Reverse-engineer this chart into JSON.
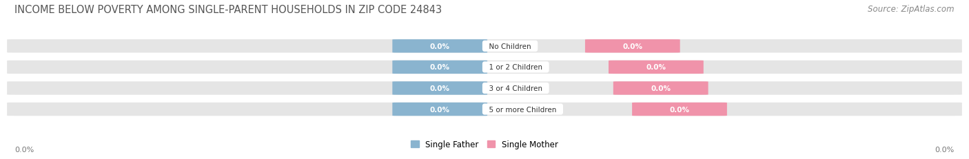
{
  "title": "INCOME BELOW POVERTY AMONG SINGLE-PARENT HOUSEHOLDS IN ZIP CODE 24843",
  "source": "Source: ZipAtlas.com",
  "categories": [
    "No Children",
    "1 or 2 Children",
    "3 or 4 Children",
    "5 or more Children"
  ],
  "father_values": [
    0.0,
    0.0,
    0.0,
    0.0
  ],
  "mother_values": [
    0.0,
    0.0,
    0.0,
    0.0
  ],
  "father_color": "#8ab4cf",
  "mother_color": "#f093aa",
  "bg_bar_color": "#e5e5e5",
  "title_fontsize": 10.5,
  "source_fontsize": 8.5,
  "label_fontsize": 7.5,
  "value_fontsize": 7.5,
  "tick_fontsize": 8,
  "legend_fontsize": 8.5,
  "fig_bg_color": "#ffffff",
  "ax_bg_color": "#ffffff",
  "x_axis_label_left": "0.0%",
  "x_axis_label_right": "0.0%",
  "legend_father": "Single Father",
  "legend_mother": "Single Mother"
}
